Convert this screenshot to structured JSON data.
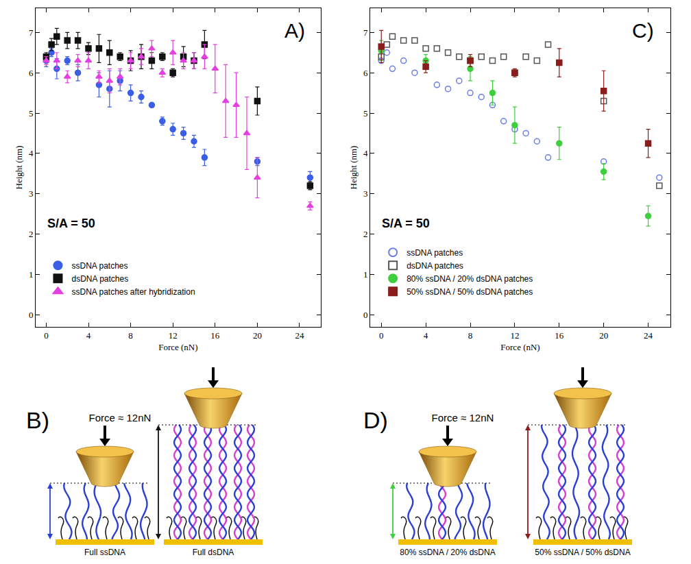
{
  "chart_data": [
    {
      "type": "scatter",
      "annotations": [
        "A)",
        "S/A = 50"
      ],
      "x_label": "Force (nN)",
      "y_label": "Height (nm)",
      "xlim": [
        -1,
        26
      ],
      "xticks": [
        0,
        4,
        8,
        12,
        16,
        20,
        24
      ],
      "ylim": [
        -0.3,
        7.6
      ],
      "yticks": [
        0,
        1,
        2,
        3,
        4,
        5,
        6,
        7
      ],
      "grid": false,
      "legend": "lower left",
      "series": [
        {
          "name": "ssDNA patches",
          "color": "#3a5ee6",
          "marker": "circle",
          "x": [
            0,
            0.5,
            1,
            2,
            3,
            5,
            6,
            7,
            8,
            9,
            10,
            11,
            12,
            13,
            14,
            15,
            20,
            25
          ],
          "values": [
            6.3,
            6.5,
            6.1,
            6.3,
            6.0,
            5.7,
            5.6,
            5.8,
            5.5,
            5.4,
            5.2,
            4.8,
            4.6,
            4.5,
            4.3,
            3.9,
            3.8,
            3.4
          ],
          "error": [
            0.15,
            0.1,
            0.25,
            0.1,
            0.2,
            0.3,
            0.45,
            0.25,
            0.2,
            0.15,
            0.05,
            0.1,
            0.15,
            0.15,
            0.15,
            0.2,
            0.1,
            0.15
          ]
        },
        {
          "name": "dsDNA patches",
          "color": "#111111",
          "marker": "square",
          "x": [
            0,
            0.5,
            1,
            2,
            3,
            4,
            5,
            6,
            7,
            8,
            9,
            10,
            11,
            12,
            13,
            14,
            15,
            20,
            25
          ],
          "values": [
            6.4,
            6.7,
            6.9,
            6.8,
            6.8,
            6.6,
            6.6,
            6.5,
            6.4,
            6.3,
            6.4,
            6.3,
            6.4,
            6.0,
            6.4,
            6.3,
            6.7,
            5.3,
            3.2
          ],
          "error": [
            0.1,
            0.15,
            0.2,
            0.2,
            0.2,
            0.15,
            0.35,
            0.3,
            0.1,
            0.25,
            0.3,
            0.2,
            0.1,
            0.1,
            0.25,
            0.2,
            0.35,
            0.35,
            0.1
          ]
        },
        {
          "name": "ssDNA patches after hybridization",
          "color": "#e43fe0",
          "marker": "triangle-up",
          "x": [
            0,
            1,
            2,
            3,
            4,
            5,
            6,
            7,
            8,
            9,
            10,
            11,
            12,
            13,
            14,
            15,
            16,
            17,
            18,
            19,
            20,
            25
          ],
          "values": [
            6.3,
            6.3,
            5.9,
            6.3,
            6.3,
            5.9,
            5.8,
            5.9,
            6.3,
            6.4,
            6.6,
            6.0,
            6.5,
            6.3,
            6.3,
            6.4,
            6.1,
            5.3,
            5.2,
            4.5,
            3.4,
            2.7
          ],
          "error": [
            0.1,
            0.2,
            0.15,
            0.15,
            0.2,
            0.15,
            0.3,
            0.2,
            0.2,
            0.2,
            0.2,
            0.1,
            0.3,
            0.2,
            0.2,
            0.3,
            0.6,
            0.9,
            0.8,
            0.9,
            0.5,
            0.1
          ]
        }
      ]
    },
    {
      "type": "scatter",
      "annotations": [
        "C)",
        "S/A = 50"
      ],
      "x_label": "Force (nN)",
      "y_label": "Height (nm)",
      "xlim": [
        -1,
        26
      ],
      "xticks": [
        0,
        4,
        8,
        12,
        16,
        20,
        24
      ],
      "ylim": [
        -0.3,
        7.6
      ],
      "yticks": [
        0,
        1,
        2,
        3,
        4,
        5,
        6,
        7
      ],
      "grid": false,
      "legend": "lower left",
      "series": [
        {
          "name": "ssDNA patches",
          "color": "#6a7ee8",
          "marker": "circle-open",
          "x": [
            0,
            0.5,
            1,
            2,
            3,
            5,
            6,
            7,
            8,
            9,
            10,
            11,
            12,
            13,
            14,
            15,
            20,
            25
          ],
          "values": [
            6.3,
            6.5,
            6.1,
            6.3,
            6.0,
            5.7,
            5.6,
            5.8,
            5.5,
            5.4,
            5.2,
            4.8,
            4.6,
            4.5,
            4.3,
            3.9,
            3.8,
            3.4
          ]
        },
        {
          "name": "dsDNA patches",
          "color": "#555555",
          "marker": "square-open",
          "x": [
            0,
            0.5,
            1,
            2,
            3,
            4,
            5,
            6,
            7,
            8,
            9,
            10,
            11,
            12,
            13,
            14,
            15,
            20,
            25
          ],
          "values": [
            6.4,
            6.7,
            6.9,
            6.8,
            6.8,
            6.6,
            6.6,
            6.5,
            6.4,
            6.3,
            6.4,
            6.3,
            6.4,
            6.0,
            6.4,
            6.3,
            6.7,
            5.3,
            3.2
          ]
        },
        {
          "name": "80% ssDNA / 20% dsDNA patches",
          "color": "#3ecf3e",
          "marker": "circle",
          "x": [
            0,
            4,
            8,
            10,
            12,
            16,
            20,
            24
          ],
          "values": [
            6.55,
            6.3,
            6.1,
            5.5,
            4.7,
            4.25,
            3.55,
            2.45
          ],
          "error": [
            0.25,
            0.15,
            0.3,
            0.3,
            0.45,
            0.4,
            0.2,
            0.25
          ]
        },
        {
          "name": "50% ssDNA / 50% dsDNA patches",
          "color": "#8b1c1c",
          "marker": "square",
          "x": [
            0,
            4,
            8,
            12,
            16,
            20,
            24
          ],
          "values": [
            6.65,
            6.15,
            6.3,
            6.0,
            6.25,
            5.55,
            4.25
          ],
          "error": [
            0.4,
            0.15,
            0.15,
            0.1,
            0.35,
            0.5,
            0.35
          ]
        }
      ]
    }
  ],
  "diagrams": [
    {
      "label": "B)",
      "force": "Force ≈ 12nN",
      "panels": [
        "Full ssDNA",
        "Full dsDNA"
      ]
    },
    {
      "label": "D)",
      "force": "Force ≈ 12nN",
      "panels": [
        "80% ssDNA / 20% dsDNA",
        "50% ssDNA / 50% dsDNA"
      ]
    }
  ]
}
